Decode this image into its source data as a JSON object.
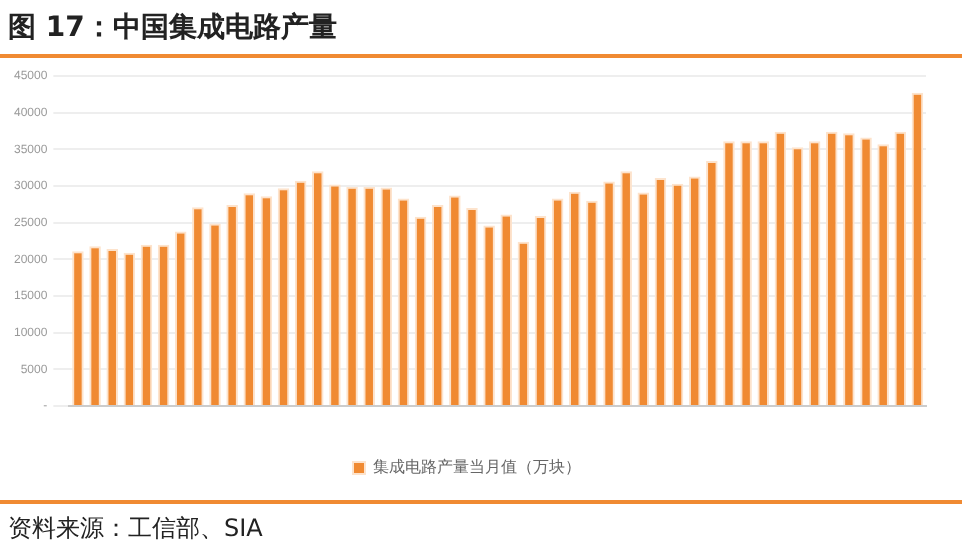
{
  "chart_data": {
    "type": "bar",
    "title": "图 17：中国集成电路产量",
    "categories": [
      null,
      null,
      null,
      null,
      null,
      null,
      null,
      null,
      null,
      null,
      null,
      null,
      null,
      null,
      null,
      null,
      null,
      null,
      null,
      null,
      null,
      null,
      null,
      null,
      null,
      null,
      null,
      null,
      null,
      null,
      null,
      null,
      null,
      null,
      null,
      null,
      null,
      null,
      null,
      null,
      null,
      null,
      null,
      null,
      null,
      null,
      null,
      null,
      null,
      null
    ],
    "series": [
      {
        "name": "集成电路产量当月值（万块）",
        "color": "#f08a32",
        "values": [
          21100,
          21800,
          21400,
          20900,
          22000,
          22000,
          23800,
          27100,
          24900,
          27400,
          29000,
          28600,
          29700,
          30700,
          32000,
          30200,
          29900,
          29900,
          29800,
          28300,
          25800,
          27400,
          28700,
          27000,
          24600,
          26100,
          22400,
          25900,
          28300,
          29200,
          28000,
          30600,
          32000,
          29100,
          31100,
          30300,
          31300,
          33400,
          36100,
          36100,
          36100,
          37400,
          35300,
          36100,
          37400,
          37200,
          36600,
          35700,
          37400,
          42700
        ]
      }
    ],
    "ylim": [
      0,
      45000
    ],
    "yticks": [
      {
        "value": 0,
        "label": "-"
      },
      5000,
      10000,
      15000,
      20000,
      25000,
      30000,
      35000,
      40000,
      45000
    ],
    "grid": "y",
    "legend": "bottom",
    "annotations": [
      "资料来源：工信部、SIA"
    ]
  }
}
